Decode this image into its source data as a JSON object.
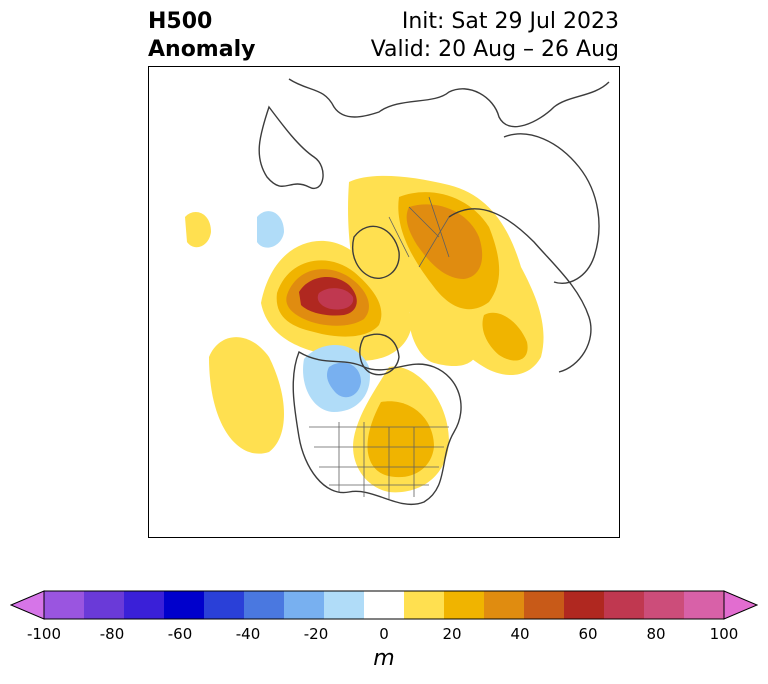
{
  "title": {
    "left_line1": "H500",
    "left_line2": "Anomaly",
    "right_line1": "Init: Sat 29 Jul 2023",
    "right_line2": "Valid: 20 Aug – 26 Aug"
  },
  "colorbar": {
    "unit": "m",
    "ticks": [
      "-100",
      "-80",
      "-60",
      "-40",
      "-20",
      "0",
      "20",
      "40",
      "60",
      "80",
      "100"
    ],
    "colors": [
      "#d675e8",
      "#9a55e0",
      "#6a3ad8",
      "#3a20d8",
      "#0000cc",
      "#2a40d8",
      "#4a78e0",
      "#78b0f0",
      "#b0dcf8",
      "#ffffff",
      "#ffe050",
      "#f0b400",
      "#e08c10",
      "#c85a18",
      "#b02820",
      "#c03850",
      "#cc4d7a",
      "#d861a8",
      "#e26dd0"
    ]
  },
  "colors": {
    "frame": "#000000",
    "land_outline": "#3c3c3c",
    "state_lines": "#606060"
  }
}
